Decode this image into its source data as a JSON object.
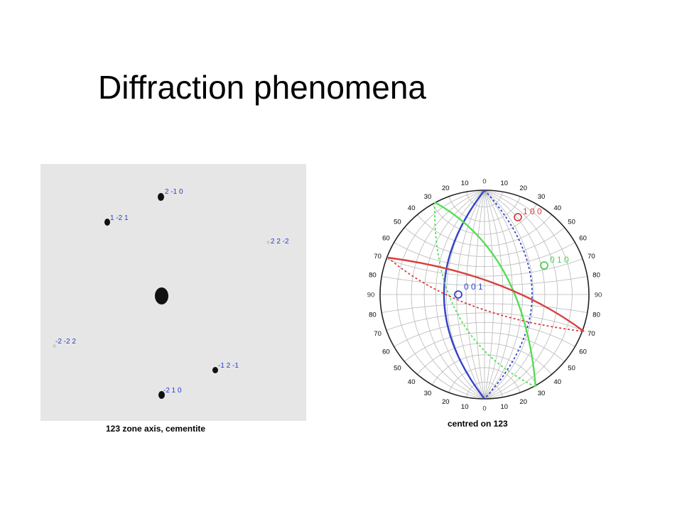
{
  "title": "Diffraction phenomena",
  "left_figure": {
    "caption": "123 zone axis, cementite",
    "spots": [
      {
        "label": "2 -1 0"
      },
      {
        "label": "1 -2 1"
      },
      {
        "label": "2 2 -2"
      },
      {
        "label": ""
      },
      {
        "label": "-2 -2 2"
      },
      {
        "label": "-1 2 -1"
      },
      {
        "label": "-2 1 0"
      }
    ]
  },
  "right_figure": {
    "caption": "centred on 123",
    "tick_labels": [
      "0",
      "10",
      "20",
      "30",
      "40",
      "50",
      "60",
      "70",
      "80",
      "90",
      "80",
      "70",
      "60",
      "50",
      "40",
      "30",
      "20",
      "10"
    ],
    "poles": [
      {
        "label": "1 0 0",
        "color": "#d84040"
      },
      {
        "label": "0 1 0",
        "color": "#55cc55"
      },
      {
        "label": "0 0 1",
        "color": "#3344cc"
      }
    ],
    "colors": {
      "red": "#d84040",
      "green": "#55dd55",
      "blue": "#3344cc",
      "grid": "#b8b8b8"
    }
  }
}
